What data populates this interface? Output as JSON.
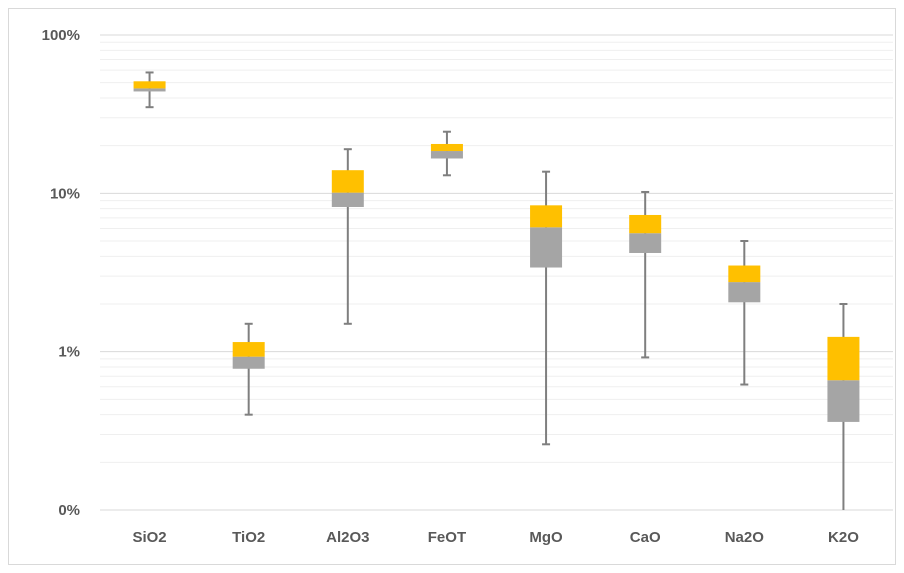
{
  "chart_data": {
    "type": "boxplot",
    "y_scale": "log",
    "ylim": [
      0.001,
      1
    ],
    "y_ticks": [
      {
        "value": 1,
        "label": "100%"
      },
      {
        "value": 0.1,
        "label": "10%"
      },
      {
        "value": 0.01,
        "label": "1%"
      },
      {
        "value": 0.001,
        "label": "0%"
      }
    ],
    "grid": true,
    "colors": {
      "lower_box": "#a5a5a5",
      "upper_box": "#ffc000",
      "whisker": "#7f7f7f",
      "grid_major": "#d9d9d9",
      "grid_minor": "#efefef"
    },
    "categories": [
      "SiO2",
      "TiO2",
      "Al2O3",
      "FeOT",
      "MgO",
      "CaO",
      "Na2O",
      "K2O"
    ],
    "boxes": [
      {
        "min": 0.35,
        "q1": 0.44,
        "median": 0.46,
        "q3": 0.51,
        "max": 0.58
      },
      {
        "min": 0.004,
        "q1": 0.0078,
        "median": 0.0093,
        "q3": 0.0115,
        "max": 0.015
      },
      {
        "min": 0.015,
        "q1": 0.082,
        "median": 0.101,
        "q3": 0.14,
        "max": 0.19
      },
      {
        "min": 0.13,
        "q1": 0.166,
        "median": 0.185,
        "q3": 0.205,
        "max": 0.245
      },
      {
        "min": 0.0026,
        "q1": 0.034,
        "median": 0.061,
        "q3": 0.084,
        "max": 0.137
      },
      {
        "min": 0.0092,
        "q1": 0.042,
        "median": 0.056,
        "q3": 0.073,
        "max": 0.102
      },
      {
        "min": 0.0062,
        "q1": 0.0205,
        "median": 0.0275,
        "q3": 0.035,
        "max": 0.05
      },
      {
        "min": 0.001,
        "q1": 0.0036,
        "median": 0.0066,
        "q3": 0.0124,
        "max": 0.02
      }
    ]
  }
}
